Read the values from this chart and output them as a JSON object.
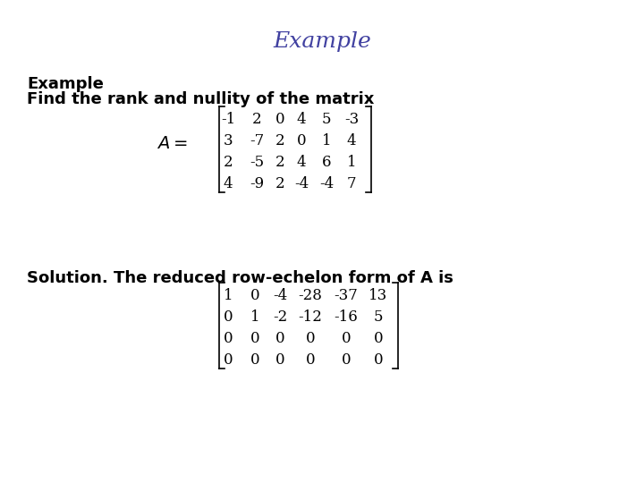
{
  "title": "Example",
  "title_color": "#4040a0",
  "title_fontsize": 18,
  "header_example": "Example",
  "header_find": "Find the rank and nullity of the matrix",
  "matrix_A_label": "A =",
  "matrix_A": [
    [
      "-1",
      "2",
      "0",
      "4",
      "5",
      "-3"
    ],
    [
      "3",
      "-7",
      "2",
      "0",
      "1",
      "4"
    ],
    [
      "2",
      "-5",
      "2",
      "4",
      "6",
      "1"
    ],
    [
      "4",
      "-9",
      "2",
      "-4",
      "-4",
      "7"
    ]
  ],
  "solution_text": "Solution. The reduced row-echelon form of A is",
  "matrix_B": [
    [
      "1",
      "0",
      "-4",
      "-28",
      "-37",
      "13"
    ],
    [
      "0",
      "1",
      "-2",
      "-12",
      "-16",
      "5"
    ],
    [
      "0",
      "0",
      "0",
      "0",
      "0",
      "0"
    ],
    [
      "0",
      "0",
      "0",
      "0",
      "0",
      "0"
    ]
  ],
  "bg_color": "#ffffff",
  "text_color": "#000000",
  "body_fontsize": 13,
  "matrix_fontsize": 12
}
